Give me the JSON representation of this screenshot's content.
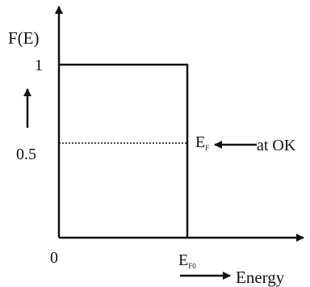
{
  "diagram": {
    "y_axis_label": "F(E)",
    "x_axis_label": "Energy",
    "tick_one": "1",
    "tick_half": "0.5",
    "origin": "0",
    "fermi_level": {
      "main": "E",
      "sub": "F"
    },
    "fermi_level_zero": {
      "main": "E",
      "sub": "F0"
    },
    "annotation": "at OK"
  }
}
